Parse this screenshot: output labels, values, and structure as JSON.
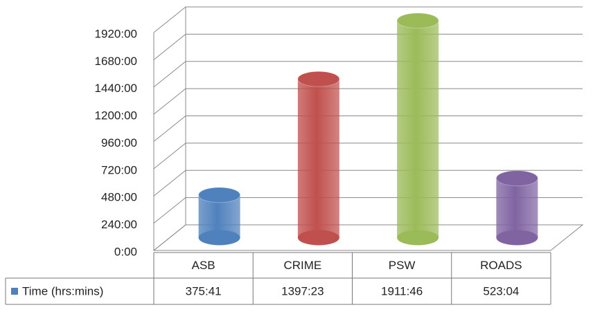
{
  "chart_data": {
    "type": "bar3d",
    "categories": [
      "ASB",
      "CRIME",
      "PSW",
      "ROADS"
    ],
    "series": [
      {
        "name": "Time (hrs:mins)",
        "color": "#4f81bd",
        "values": [
          22541,
          83843,
          114706,
          31384
        ],
        "value_labels": [
          "375:41",
          "1397:23",
          "1911:46",
          "523:04"
        ],
        "colors": [
          "#4f81bd",
          "#c0504d",
          "#9bbb59",
          "#8064a2"
        ]
      }
    ],
    "ylim": [
      0,
      115200
    ],
    "yticks": [
      {
        "value": 0,
        "label": "0:00"
      },
      {
        "value": 14400,
        "label": "240:00"
      },
      {
        "value": 28800,
        "label": "480:00"
      },
      {
        "value": 43200,
        "label": "720:00"
      },
      {
        "value": 57600,
        "label": "960:00"
      },
      {
        "value": 72000,
        "label": "1200:00"
      },
      {
        "value": 86400,
        "label": "1440:00"
      },
      {
        "value": 100800,
        "label": "1680:00"
      },
      {
        "value": 115200,
        "label": "1920:00"
      }
    ],
    "grid": true
  }
}
